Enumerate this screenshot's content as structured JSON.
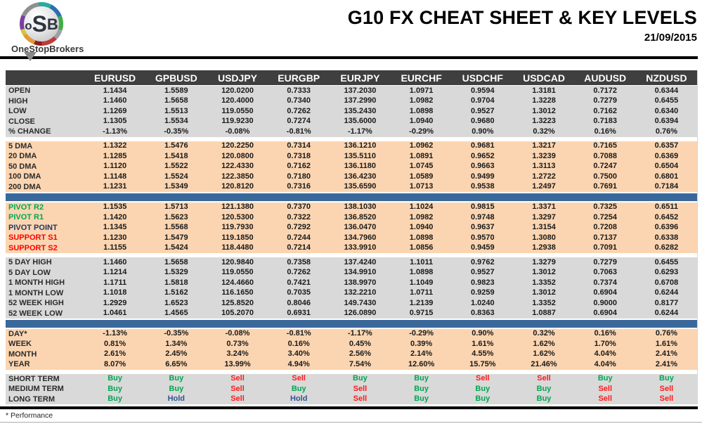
{
  "header": {
    "logo": {
      "o": "o",
      "s": "S",
      "b": "B",
      "name": "OneStopBrokers"
    },
    "title": "G10 FX CHEAT SHEET & KEY LEVELS",
    "date": "21/09/2015"
  },
  "colors": {
    "header_bg": "#3F3F3F",
    "gray_band": "#D9D9D9",
    "peach_band": "#FBD5B1",
    "divider_blue": "#3A689B",
    "green": "#00A651",
    "red": "#FF0000",
    "navy": "#1F3864",
    "hold_blue": "#31538F"
  },
  "table": {
    "columns": [
      "EURUSD",
      "GPBUSD",
      "USDJPY",
      "EURGBP",
      "EURJPY",
      "EURCHF",
      "USDCHF",
      "USDCAD",
      "AUDUSD",
      "NZDUSD"
    ],
    "value_colors": {
      "Buy": "#00A651",
      "Sell": "#FF1A1A",
      "Hold": "#31538F"
    },
    "sections": [
      {
        "bg": "gray",
        "after": "gap",
        "rows": [
          {
            "label": "OPEN",
            "values": [
              "1.1434",
              "1.5589",
              "120.0200",
              "0.7333",
              "137.2030",
              "1.0971",
              "0.9594",
              "1.3181",
              "0.7172",
              "0.6344"
            ]
          },
          {
            "label": "HIGH",
            "values": [
              "1.1460",
              "1.5658",
              "120.4000",
              "0.7340",
              "137.2990",
              "1.0982",
              "0.9704",
              "1.3228",
              "0.7279",
              "0.6455"
            ]
          },
          {
            "label": "LOW",
            "values": [
              "1.1269",
              "1.5513",
              "119.0550",
              "0.7262",
              "135.2430",
              "1.0898",
              "0.9527",
              "1.3012",
              "0.7162",
              "0.6340"
            ]
          },
          {
            "label": "CLOSE",
            "values": [
              "1.1305",
              "1.5534",
              "119.9230",
              "0.7274",
              "135.6000",
              "1.0940",
              "0.9680",
              "1.3223",
              "0.7183",
              "0.6394"
            ]
          },
          {
            "label": "% CHANGE",
            "values": [
              "-1.13%",
              "-0.35%",
              "-0.08%",
              "-0.81%",
              "-1.17%",
              "-0.29%",
              "0.90%",
              "0.32%",
              "0.16%",
              "0.76%"
            ]
          }
        ]
      },
      {
        "bg": "peach",
        "after": "blue",
        "rows": [
          {
            "label": "5 DMA",
            "values": [
              "1.1322",
              "1.5476",
              "120.2250",
              "0.7314",
              "136.1210",
              "1.0962",
              "0.9681",
              "1.3217",
              "0.7165",
              "0.6357"
            ]
          },
          {
            "label": "20 DMA",
            "values": [
              "1.1285",
              "1.5418",
              "120.0800",
              "0.7318",
              "135.5110",
              "1.0891",
              "0.9652",
              "1.3239",
              "0.7088",
              "0.6369"
            ]
          },
          {
            "label": "50 DMA",
            "values": [
              "1.1120",
              "1.5522",
              "122.4330",
              "0.7162",
              "136.1180",
              "1.0745",
              "0.9663",
              "1.3113",
              "0.7247",
              "0.6504"
            ]
          },
          {
            "label": "100 DMA",
            "values": [
              "1.1148",
              "1.5524",
              "122.3850",
              "0.7180",
              "136.4230",
              "1.0589",
              "0.9499",
              "1.2722",
              "0.7500",
              "0.6801"
            ]
          },
          {
            "label": "200 DMA",
            "values": [
              "1.1231",
              "1.5349",
              "120.8120",
              "0.7316",
              "135.6590",
              "1.0713",
              "0.9538",
              "1.2497",
              "0.7691",
              "0.7184"
            ]
          }
        ]
      },
      {
        "bg": "peach",
        "after": "gap",
        "rows": [
          {
            "label": "PIVOT R2",
            "label_color": "green",
            "values": [
              "1.1535",
              "1.5713",
              "121.1380",
              "0.7370",
              "138.1030",
              "1.1024",
              "0.9815",
              "1.3371",
              "0.7325",
              "0.6511"
            ]
          },
          {
            "label": "PIVOT R1",
            "label_color": "green",
            "values": [
              "1.1420",
              "1.5623",
              "120.5300",
              "0.7322",
              "136.8520",
              "1.0982",
              "0.9748",
              "1.3297",
              "0.7254",
              "0.6452"
            ]
          },
          {
            "label": "PIVOT POINT",
            "label_color": "navy",
            "values": [
              "1.1345",
              "1.5568",
              "119.7930",
              "0.7292",
              "136.0470",
              "1.0940",
              "0.9637",
              "1.3154",
              "0.7208",
              "0.6396"
            ]
          },
          {
            "label": "SUPPORT S1",
            "label_color": "red",
            "values": [
              "1.1230",
              "1.5479",
              "119.1850",
              "0.7244",
              "134.7960",
              "1.0898",
              "0.9570",
              "1.3080",
              "0.7137",
              "0.6338"
            ]
          },
          {
            "label": "SUPPORT S2",
            "label_color": "red",
            "values": [
              "1.1155",
              "1.5424",
              "118.4480",
              "0.7214",
              "133.9910",
              "1.0856",
              "0.9459",
              "1.2938",
              "0.7091",
              "0.6282"
            ]
          }
        ]
      },
      {
        "bg": "gray",
        "after": "blue",
        "rows": [
          {
            "label": "5 DAY HIGH",
            "values": [
              "1.1460",
              "1.5658",
              "120.9840",
              "0.7358",
              "137.4240",
              "1.1011",
              "0.9762",
              "1.3279",
              "0.7279",
              "0.6455"
            ]
          },
          {
            "label": "5 DAY LOW",
            "values": [
              "1.1214",
              "1.5329",
              "119.0550",
              "0.7262",
              "134.9910",
              "1.0898",
              "0.9527",
              "1.3012",
              "0.7063",
              "0.6293"
            ]
          },
          {
            "label": "1 MONTH HIGH",
            "values": [
              "1.1711",
              "1.5818",
              "124.4660",
              "0.7421",
              "138.9970",
              "1.1049",
              "0.9823",
              "1.3352",
              "0.7374",
              "0.6708"
            ]
          },
          {
            "label": "1 MONTH LOW",
            "values": [
              "1.1018",
              "1.5162",
              "116.1650",
              "0.7035",
              "132.2210",
              "1.0711",
              "0.9259",
              "1.3012",
              "0.6904",
              "0.6244"
            ]
          },
          {
            "label": "52 WEEK HIGH",
            "values": [
              "1.2929",
              "1.6523",
              "125.8520",
              "0.8046",
              "149.7430",
              "1.2139",
              "1.0240",
              "1.3352",
              "0.9000",
              "0.8177"
            ]
          },
          {
            "label": "52 WEEK LOW",
            "values": [
              "1.0461",
              "1.4565",
              "105.2070",
              "0.6931",
              "126.0890",
              "0.9715",
              "0.8363",
              "1.0887",
              "0.6904",
              "0.6244"
            ]
          }
        ]
      },
      {
        "bg": "peach",
        "after": "gap",
        "rows": [
          {
            "label": "DAY*",
            "values": [
              "-1.13%",
              "-0.35%",
              "-0.08%",
              "-0.81%",
              "-1.17%",
              "-0.29%",
              "0.90%",
              "0.32%",
              "0.16%",
              "0.76%"
            ]
          },
          {
            "label": "WEEK",
            "values": [
              "0.81%",
              "1.34%",
              "0.73%",
              "0.16%",
              "0.45%",
              "0.39%",
              "1.61%",
              "1.62%",
              "1.70%",
              "1.61%"
            ]
          },
          {
            "label": "MONTH",
            "values": [
              "2.61%",
              "2.45%",
              "3.24%",
              "3.40%",
              "2.56%",
              "2.14%",
              "4.55%",
              "1.62%",
              "4.04%",
              "2.41%"
            ]
          },
          {
            "label": "YEAR",
            "values": [
              "8.07%",
              "6.65%",
              "13.99%",
              "4.94%",
              "7.54%",
              "12.60%",
              "15.75%",
              "21.46%",
              "4.04%",
              "2.41%"
            ]
          }
        ]
      },
      {
        "bg": "gray",
        "after": "none",
        "rows": [
          {
            "label": "SHORT TERM",
            "values": [
              "Buy",
              "Buy",
              "Sell",
              "Sell",
              "Buy",
              "Buy",
              "Sell",
              "Sell",
              "Buy",
              "Buy"
            ]
          },
          {
            "label": "MEDIUM TERM",
            "values": [
              "Buy",
              "Buy",
              "Sell",
              "Buy",
              "Sell",
              "Buy",
              "Buy",
              "Buy",
              "Sell",
              "Sell"
            ]
          },
          {
            "label": "LONG TERM",
            "values": [
              "Buy",
              "Hold",
              "Sell",
              "Hold",
              "Sell",
              "Buy",
              "Buy",
              "Buy",
              "Sell",
              "Sell"
            ]
          }
        ]
      }
    ]
  },
  "footer": {
    "note": "* Performance"
  }
}
